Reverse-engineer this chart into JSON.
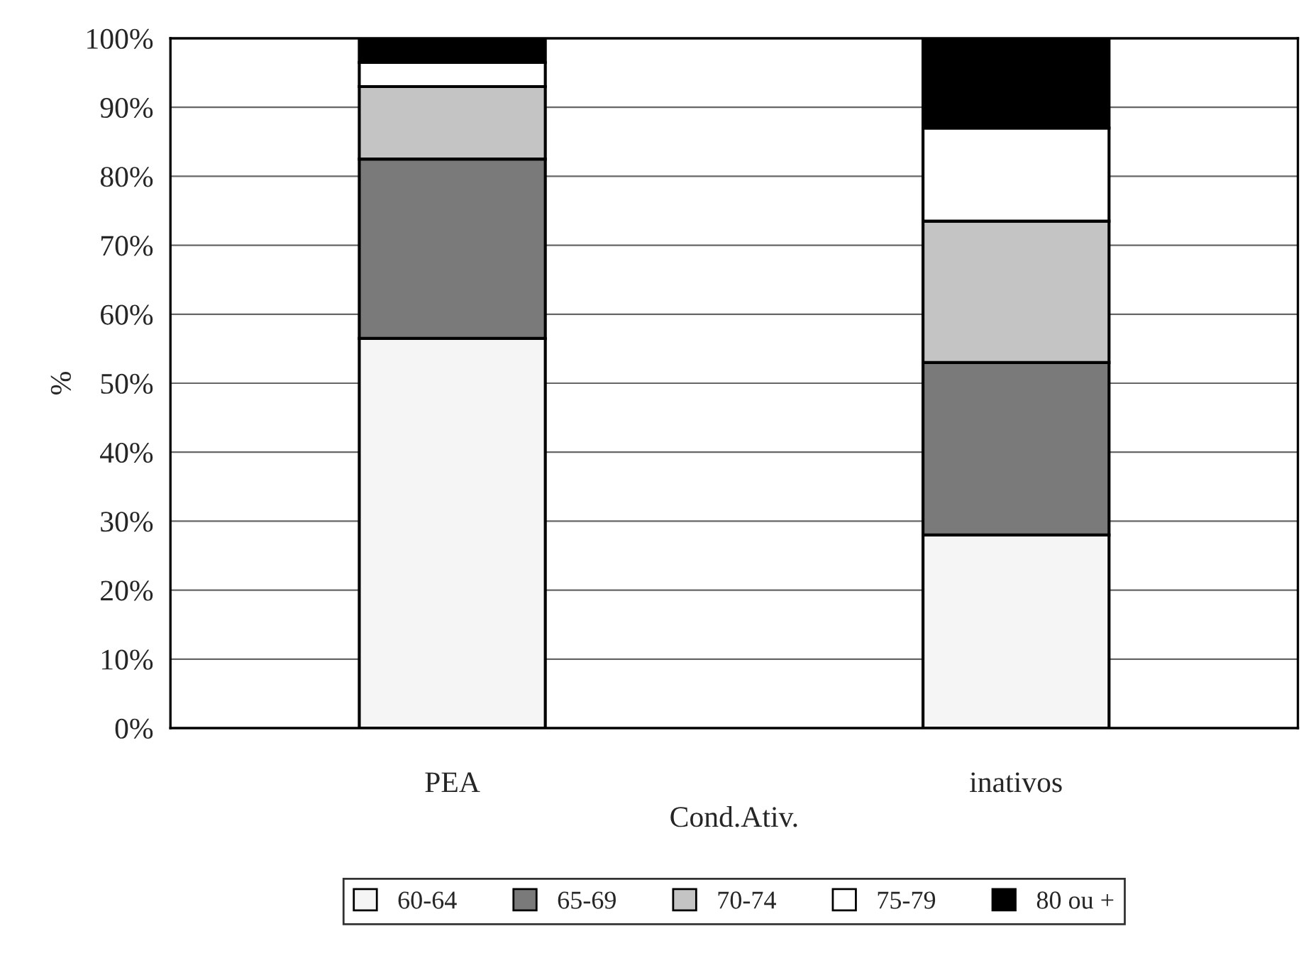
{
  "chart_data": {
    "type": "bar",
    "stacked": true,
    "xlabel": "Cond.Ativ.",
    "ylabel": "%",
    "categories": [
      "PEA",
      "inativos"
    ],
    "series": [
      {
        "name": "60-64",
        "color": "#f5f5f5",
        "values": [
          56.5,
          28
        ]
      },
      {
        "name": "65-69",
        "color": "#7a7a7a",
        "values": [
          26,
          25
        ]
      },
      {
        "name": "70-74",
        "color": "#c4c4c4",
        "values": [
          10.5,
          20.5
        ]
      },
      {
        "name": "75-79",
        "color": "#ffffff",
        "values": [
          3.5,
          13.5
        ]
      },
      {
        "name": "80 ou +",
        "color": "#000000",
        "values": [
          3.5,
          13
        ]
      }
    ],
    "ylim": [
      0,
      100
    ],
    "yticks": [
      {
        "value": 0,
        "label": "0%"
      },
      {
        "value": 10,
        "label": "10%"
      },
      {
        "value": 20,
        "label": "20%"
      },
      {
        "value": 30,
        "label": "30%"
      },
      {
        "value": 40,
        "label": "40%"
      },
      {
        "value": 50,
        "label": "50%"
      },
      {
        "value": 60,
        "label": "60%"
      },
      {
        "value": 70,
        "label": "70%"
      },
      {
        "value": 80,
        "label": "80%"
      },
      {
        "value": 90,
        "label": "90%"
      },
      {
        "value": 100,
        "label": "100%"
      }
    ],
    "grid": "y",
    "legend": "bottom"
  }
}
